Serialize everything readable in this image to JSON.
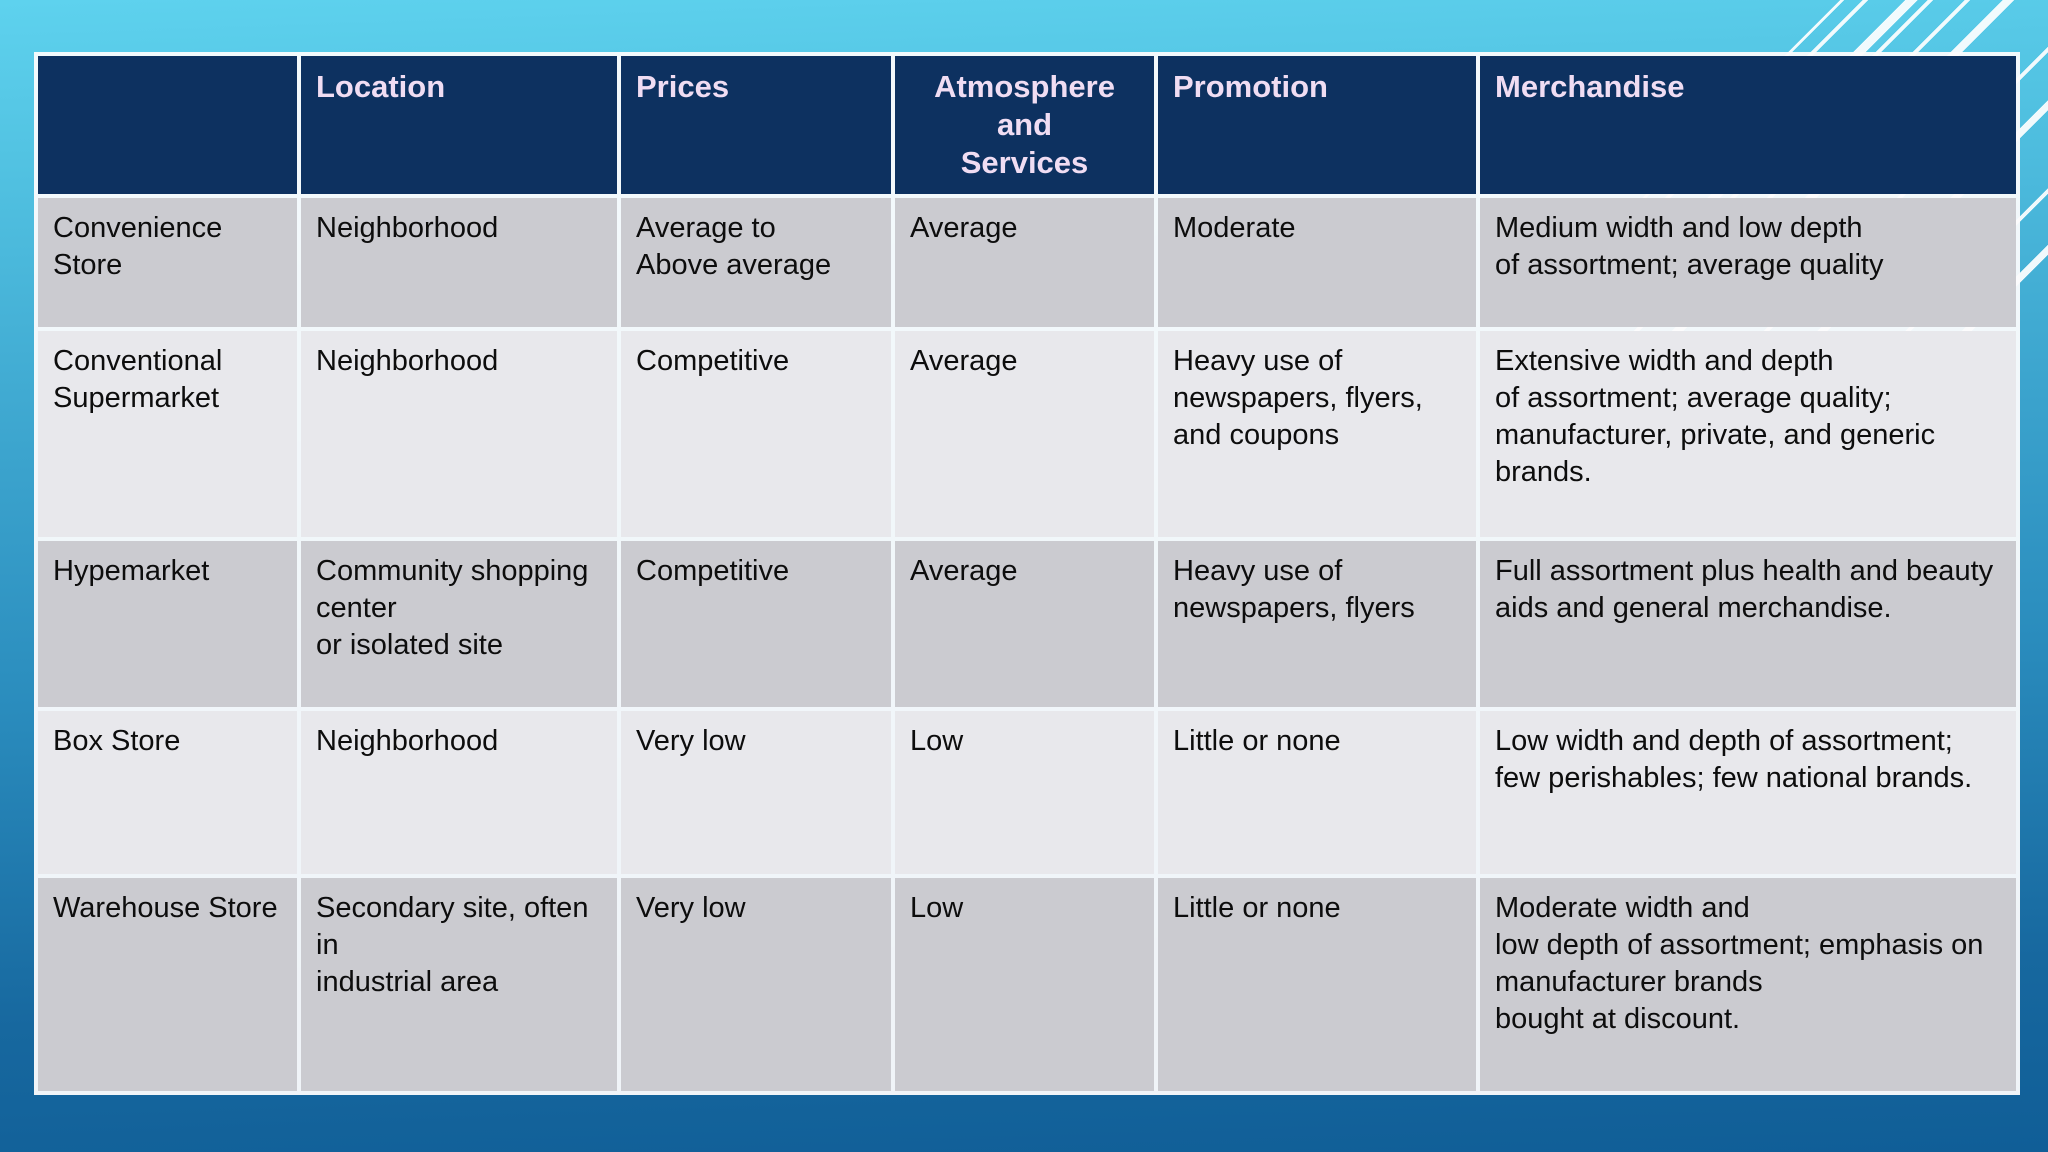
{
  "colors": {
    "header-bg": "#0d3160",
    "header-text": "#f0ddf3",
    "row-dark": "#cbcbd0",
    "row-light": "#e8e8ec",
    "bg-top": "#5ed2ee",
    "bg-bottom": "#105e97",
    "stripe": "#ffffff"
  },
  "table": {
    "headers": [
      "",
      "Location",
      "Prices",
      "Atmosphere\nand\nServices",
      "Promotion",
      "Merchandise"
    ],
    "rows": [
      {
        "cells": [
          "Convenience\nStore",
          "Neighborhood",
          "Average to\nAbove average",
          "Average",
          "Moderate",
          "Medium width and low depth\nof assortment; average quality"
        ]
      },
      {
        "cells": [
          "Conventional\nSupermarket",
          "Neighborhood",
          "Competitive",
          "Average",
          "Heavy use of\nnewspapers, flyers,\nand coupons",
          "Extensive width and depth\nof assortment; average quality;\n manufacturer, private, and generic\nbrands."
        ]
      },
      {
        "cells": [
          "Hypemarket",
          "Community shopping\ncenter\nor isolated site",
          "Competitive",
          "Average",
          "Heavy use of\nnewspapers, flyers",
          "Full assortment plus health and beauty\naids and general merchandise."
        ]
      },
      {
        "cells": [
          "Box Store",
          "Neighborhood",
          "Very low",
          "Low",
          "Little or none",
          "Low width and depth of assortment;\nfew perishables; few national brands."
        ]
      },
      {
        "cells": [
          "Warehouse Store",
          "Secondary site, often\nin\nindustrial area",
          "Very low",
          "Low",
          "Little or none",
          "Moderate width and\nlow depth of assortment; emphasis on\nmanufacturer brands\nbought at discount."
        ]
      }
    ]
  }
}
